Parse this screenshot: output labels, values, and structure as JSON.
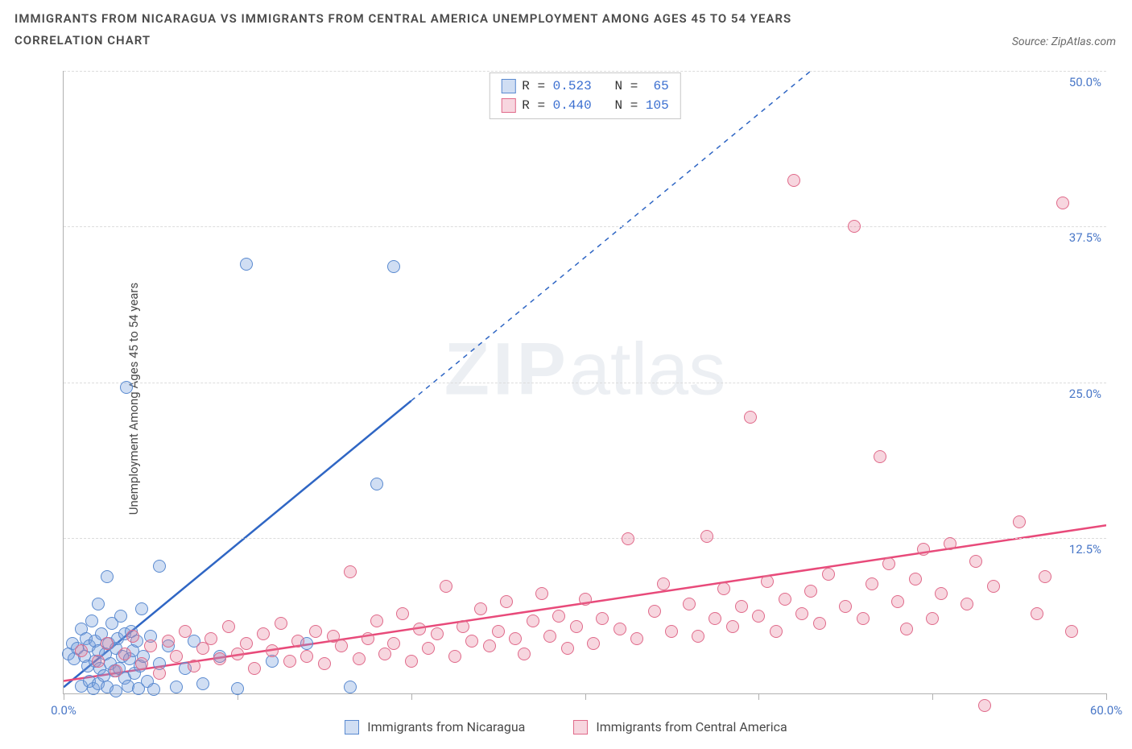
{
  "title_line1": "IMMIGRANTS FROM NICARAGUA VS IMMIGRANTS FROM CENTRAL AMERICA UNEMPLOYMENT AMONG AGES 45 TO 54 YEARS",
  "title_line2": "CORRELATION CHART",
  "source_prefix": "Source: ",
  "source_name": "ZipAtlas.com",
  "y_axis_label": "Unemployment Among Ages 45 to 54 years",
  "watermark_zip": "ZIP",
  "watermark_atlas": "atlas",
  "chart": {
    "type": "scatter",
    "xlim": [
      0,
      60
    ],
    "ylim": [
      0,
      50
    ],
    "x_ticks": [
      0,
      10,
      20,
      30,
      40,
      50,
      60
    ],
    "x_tick_labels": [
      "0.0%",
      "",
      "",
      "",
      "",
      "",
      "60.0%"
    ],
    "y_gridlines": [
      12.5,
      25.0,
      37.5,
      50.0
    ],
    "y_tick_labels": [
      "12.5%",
      "25.0%",
      "37.5%",
      "50.0%"
    ],
    "grid_color": "#dcdcdc",
    "axis_color": "#b0b0b0",
    "tick_label_color": "#4a78c8",
    "point_radius": 8,
    "series": [
      {
        "name": "Immigrants from Nicaragua",
        "legend_label": "Immigrants from Nicaragua",
        "R": "0.523",
        "N": "65",
        "point_fill": "rgba(120,160,220,0.35)",
        "point_stroke": "#5a8ad0",
        "trend_color": "#2f66c4",
        "trend_solid": {
          "x1": 0,
          "y1": 0.5,
          "x2": 20,
          "y2": 23.5
        },
        "trend_dash": {
          "x1": 20,
          "y1": 23.5,
          "x2": 43,
          "y2": 50
        },
        "points": [
          [
            0.3,
            3.2
          ],
          [
            0.5,
            4.0
          ],
          [
            0.6,
            2.8
          ],
          [
            0.8,
            3.6
          ],
          [
            1.0,
            5.2
          ],
          [
            1.0,
            0.6
          ],
          [
            1.2,
            3.0
          ],
          [
            1.3,
            4.4
          ],
          [
            1.4,
            2.2
          ],
          [
            1.5,
            1.0
          ],
          [
            1.5,
            3.8
          ],
          [
            1.6,
            5.8
          ],
          [
            1.7,
            0.4
          ],
          [
            1.8,
            2.6
          ],
          [
            1.8,
            4.2
          ],
          [
            2.0,
            3.4
          ],
          [
            2.0,
            7.2
          ],
          [
            2.0,
            0.8
          ],
          [
            2.1,
            2.0
          ],
          [
            2.2,
            4.8
          ],
          [
            2.3,
            1.4
          ],
          [
            2.4,
            3.2
          ],
          [
            2.5,
            9.4
          ],
          [
            2.5,
            0.5
          ],
          [
            2.6,
            4.0
          ],
          [
            2.7,
            2.4
          ],
          [
            2.8,
            5.6
          ],
          [
            2.9,
            1.8
          ],
          [
            3.0,
            3.6
          ],
          [
            3.0,
            0.2
          ],
          [
            3.1,
            4.4
          ],
          [
            3.2,
            2.0
          ],
          [
            3.3,
            6.2
          ],
          [
            3.4,
            3.0
          ],
          [
            3.5,
            1.2
          ],
          [
            3.5,
            4.8
          ],
          [
            3.6,
            24.6
          ],
          [
            3.7,
            0.6
          ],
          [
            3.8,
            2.8
          ],
          [
            3.9,
            5.0
          ],
          [
            4.0,
            3.4
          ],
          [
            4.1,
            1.6
          ],
          [
            4.2,
            4.2
          ],
          [
            4.3,
            0.4
          ],
          [
            4.4,
            2.2
          ],
          [
            4.5,
            6.8
          ],
          [
            4.6,
            3.0
          ],
          [
            4.8,
            1.0
          ],
          [
            5.0,
            4.6
          ],
          [
            5.2,
            0.3
          ],
          [
            5.5,
            2.4
          ],
          [
            5.5,
            10.2
          ],
          [
            6.0,
            3.8
          ],
          [
            6.5,
            0.5
          ],
          [
            7.0,
            2.0
          ],
          [
            7.5,
            4.2
          ],
          [
            8.0,
            0.8
          ],
          [
            9.0,
            3.0
          ],
          [
            10.0,
            0.4
          ],
          [
            10.5,
            34.5
          ],
          [
            12.0,
            2.6
          ],
          [
            14.0,
            4.0
          ],
          [
            16.5,
            0.5
          ],
          [
            18.0,
            16.8
          ],
          [
            19.0,
            34.3
          ]
        ]
      },
      {
        "name": "Immigrants from Central America",
        "legend_label": "Immigrants from Central America",
        "R": "0.440",
        "N": "105",
        "point_fill": "rgba(230,120,150,0.30)",
        "point_stroke": "#e06a8a",
        "trend_color": "#e84a7a",
        "trend_solid": {
          "x1": 0,
          "y1": 1.0,
          "x2": 60,
          "y2": 13.5
        },
        "trend_dash": null,
        "points": [
          [
            1.0,
            3.4
          ],
          [
            2.0,
            2.6
          ],
          [
            2.5,
            4.0
          ],
          [
            3.0,
            1.8
          ],
          [
            3.5,
            3.2
          ],
          [
            4.0,
            4.6
          ],
          [
            4.5,
            2.4
          ],
          [
            5.0,
            3.8
          ],
          [
            5.5,
            1.6
          ],
          [
            6.0,
            4.2
          ],
          [
            6.5,
            3.0
          ],
          [
            7.0,
            5.0
          ],
          [
            7.5,
            2.2
          ],
          [
            8.0,
            3.6
          ],
          [
            8.5,
            4.4
          ],
          [
            9.0,
            2.8
          ],
          [
            9.5,
            5.4
          ],
          [
            10.0,
            3.2
          ],
          [
            10.5,
            4.0
          ],
          [
            11.0,
            2.0
          ],
          [
            11.5,
            4.8
          ],
          [
            12.0,
            3.4
          ],
          [
            12.5,
            5.6
          ],
          [
            13.0,
            2.6
          ],
          [
            13.5,
            4.2
          ],
          [
            14.0,
            3.0
          ],
          [
            14.5,
            5.0
          ],
          [
            15.0,
            2.4
          ],
          [
            15.5,
            4.6
          ],
          [
            16.0,
            3.8
          ],
          [
            16.5,
            9.8
          ],
          [
            17.0,
            2.8
          ],
          [
            17.5,
            4.4
          ],
          [
            18.0,
            5.8
          ],
          [
            18.5,
            3.2
          ],
          [
            19.0,
            4.0
          ],
          [
            19.5,
            6.4
          ],
          [
            20.0,
            2.6
          ],
          [
            20.5,
            5.2
          ],
          [
            21.0,
            3.6
          ],
          [
            21.5,
            4.8
          ],
          [
            22.0,
            8.6
          ],
          [
            22.5,
            3.0
          ],
          [
            23.0,
            5.4
          ],
          [
            23.5,
            4.2
          ],
          [
            24.0,
            6.8
          ],
          [
            24.5,
            3.8
          ],
          [
            25.0,
            5.0
          ],
          [
            25.5,
            7.4
          ],
          [
            26.0,
            4.4
          ],
          [
            26.5,
            3.2
          ],
          [
            27.0,
            5.8
          ],
          [
            27.5,
            8.0
          ],
          [
            28.0,
            4.6
          ],
          [
            28.5,
            6.2
          ],
          [
            29.0,
            3.6
          ],
          [
            29.5,
            5.4
          ],
          [
            30.0,
            7.6
          ],
          [
            30.5,
            4.0
          ],
          [
            31.0,
            6.0
          ],
          [
            32.0,
            5.2
          ],
          [
            32.5,
            12.4
          ],
          [
            33.0,
            4.4
          ],
          [
            34.0,
            6.6
          ],
          [
            34.5,
            8.8
          ],
          [
            35.0,
            5.0
          ],
          [
            36.0,
            7.2
          ],
          [
            36.5,
            4.6
          ],
          [
            37.0,
            12.6
          ],
          [
            37.5,
            6.0
          ],
          [
            38.0,
            8.4
          ],
          [
            38.5,
            5.4
          ],
          [
            39.0,
            7.0
          ],
          [
            39.5,
            22.2
          ],
          [
            40.0,
            6.2
          ],
          [
            40.5,
            9.0
          ],
          [
            41.0,
            5.0
          ],
          [
            41.5,
            7.6
          ],
          [
            42.0,
            41.2
          ],
          [
            42.5,
            6.4
          ],
          [
            43.0,
            8.2
          ],
          [
            43.5,
            5.6
          ],
          [
            44.0,
            9.6
          ],
          [
            45.0,
            7.0
          ],
          [
            45.5,
            37.5
          ],
          [
            46.0,
            6.0
          ],
          [
            46.5,
            8.8
          ],
          [
            47.0,
            19.0
          ],
          [
            47.5,
            10.4
          ],
          [
            48.0,
            7.4
          ],
          [
            48.5,
            5.2
          ],
          [
            49.0,
            9.2
          ],
          [
            49.5,
            11.6
          ],
          [
            50.0,
            6.0
          ],
          [
            50.5,
            8.0
          ],
          [
            51.0,
            12.0
          ],
          [
            52.0,
            7.2
          ],
          [
            52.5,
            10.6
          ],
          [
            53.0,
            -1.0
          ],
          [
            53.5,
            8.6
          ],
          [
            55.0,
            13.8
          ],
          [
            56.0,
            6.4
          ],
          [
            56.5,
            9.4
          ],
          [
            57.5,
            39.4
          ],
          [
            58.0,
            5.0
          ]
        ]
      }
    ]
  },
  "legend_box": {
    "r_label": "R =",
    "n_label": "N ="
  }
}
